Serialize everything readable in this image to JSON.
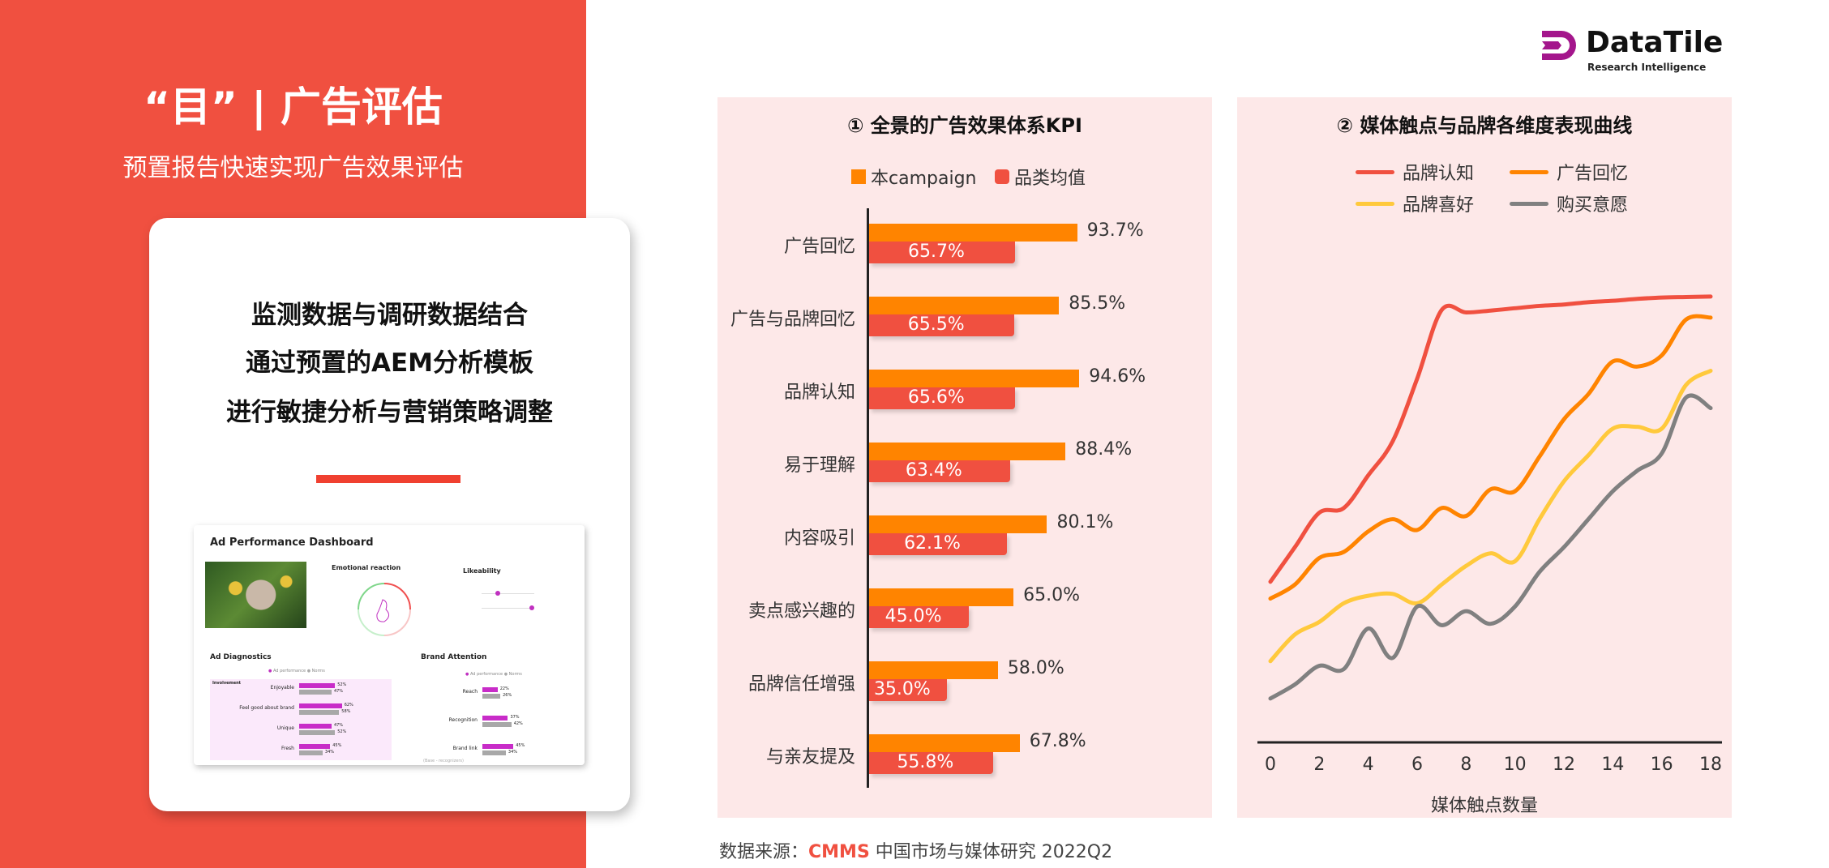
{
  "left": {
    "title": "“目” | 广告评估",
    "subtitle": "预置报告快速实现广告效果评估",
    "card_lines": [
      "监测数据与调研数据结合",
      "通过预置的AEM分析模板",
      "进行敏捷分析与营销策略调整"
    ]
  },
  "thumbnail": {
    "title": "Ad Performance Dashboard",
    "emotional": "Emotional reaction",
    "likeability": "Likeability",
    "diagnostics": "Ad Diagnostics",
    "brand_attention": "Brand Attention",
    "legend_ad": "Ad performance",
    "legend_norms": "Norms",
    "group": "Involvement",
    "diag_rows": [
      {
        "label": "Enjoyable",
        "ad": 52,
        "norm": 47,
        "ad_text": "52%",
        "norm_text": "47%"
      },
      {
        "label": "Feel good about brand",
        "ad": 62,
        "norm": 58,
        "ad_text": "62%",
        "norm_text": "58%"
      },
      {
        "label": "Unique",
        "ad": 47,
        "norm": 52,
        "ad_text": "47%",
        "norm_text": "52%"
      },
      {
        "label": "Fresh",
        "ad": 45,
        "norm": 34,
        "ad_text": "45%",
        "norm_text": "34%"
      }
    ],
    "brand_rows": [
      {
        "label": "Reach",
        "ad": 22,
        "norm": 26,
        "ad_text": "22%",
        "norm_text": "26%"
      },
      {
        "label": "Recognition",
        "ad": 37,
        "norm": 42,
        "ad_text": "37%",
        "norm_text": "42%"
      },
      {
        "label": "Brand link",
        "ad": 45,
        "norm": 34,
        "ad_text": "45%",
        "norm_text": "34%"
      }
    ],
    "brand_base": "(Base - recognizers)"
  },
  "logo": {
    "name": "DataTile",
    "tagline": "Research Intelligence",
    "color": "#a4168c"
  },
  "chart_data": [
    {
      "type": "bar",
      "title": "① 全景的广告效果体系KPI",
      "legend": [
        "本campaign",
        "品类均值"
      ],
      "colors": [
        "#ff8400",
        "#f05040"
      ],
      "categories": [
        "广告回忆",
        "广告与品牌回忆",
        "品牌认知",
        "易于理解",
        "内容吸引",
        "卖点感兴趣的",
        "品牌信任增强",
        "与亲友提及"
      ],
      "series": [
        {
          "name": "本campaign",
          "values": [
            93.7,
            85.5,
            94.6,
            88.4,
            80.1,
            65.0,
            58.0,
            67.8
          ],
          "labels": [
            "93.7%",
            "85.5%",
            "94.6%",
            "88.4%",
            "80.1%",
            "65.0%",
            "58.0%",
            "67.8%"
          ]
        },
        {
          "name": "品类均值",
          "values": [
            65.7,
            65.5,
            65.6,
            63.4,
            62.1,
            45.0,
            35.0,
            55.8
          ],
          "labels": [
            "65.7%",
            "65.5%",
            "65.6%",
            "63.4%",
            "62.1%",
            "45.0%",
            "35.0%",
            "55.8%"
          ]
        }
      ],
      "xlim": [
        0,
        100
      ]
    },
    {
      "type": "line",
      "title": "② 媒体触点与品牌各维度表现曲线",
      "xlabel": "媒体触点数量",
      "xticks": [
        "0",
        "2",
        "4",
        "6",
        "8",
        "10",
        "12",
        "14",
        "16",
        "18"
      ],
      "x": [
        0,
        1,
        2,
        3,
        4,
        5,
        6,
        7,
        8,
        9,
        10,
        11,
        12,
        13,
        14,
        15,
        16,
        17,
        18
      ],
      "ylim": [
        0,
        100
      ],
      "series": [
        {
          "name": "品牌认知",
          "color": "#f05040",
          "values": [
            34.4,
            41.8,
            49.2,
            50.2,
            57.2,
            64.5,
            77.9,
            92.6,
            92.1,
            92.5,
            93,
            93.5,
            93.8,
            94.3,
            94.6,
            95,
            95.3,
            95.4,
            95.5
          ]
        },
        {
          "name": "广告回忆",
          "color": "#ff8400",
          "values": [
            30.8,
            33.8,
            39.5,
            40.8,
            45.2,
            47.8,
            45.5,
            50.2,
            48.5,
            54.2,
            53.8,
            61.2,
            69.2,
            74.6,
            81.6,
            80.5,
            82.9,
            90.6,
            91
          ]
        },
        {
          "name": "品牌喜好",
          "color": "#ffc93c",
          "values": [
            17.4,
            23.1,
            25.8,
            29.8,
            31.4,
            31.8,
            29.8,
            33.8,
            37.8,
            40.5,
            38.8,
            47.8,
            55.9,
            61.5,
            67.2,
            67.6,
            67.2,
            76.6,
            79.6
          ]
        },
        {
          "name": "购买意愿",
          "color": "#808080",
          "values": [
            9.4,
            12.4,
            16.4,
            15.7,
            24.4,
            18.1,
            29.1,
            25.1,
            28.1,
            25.4,
            29.1,
            36.5,
            41.8,
            47.8,
            53.8,
            58.2,
            61.9,
            73.9,
            71.6
          ]
        }
      ]
    }
  ],
  "footer": {
    "prefix": "数据来源：",
    "brand": "CMMS",
    "suffix": " 中国市场与媒体研究 2022Q2"
  }
}
